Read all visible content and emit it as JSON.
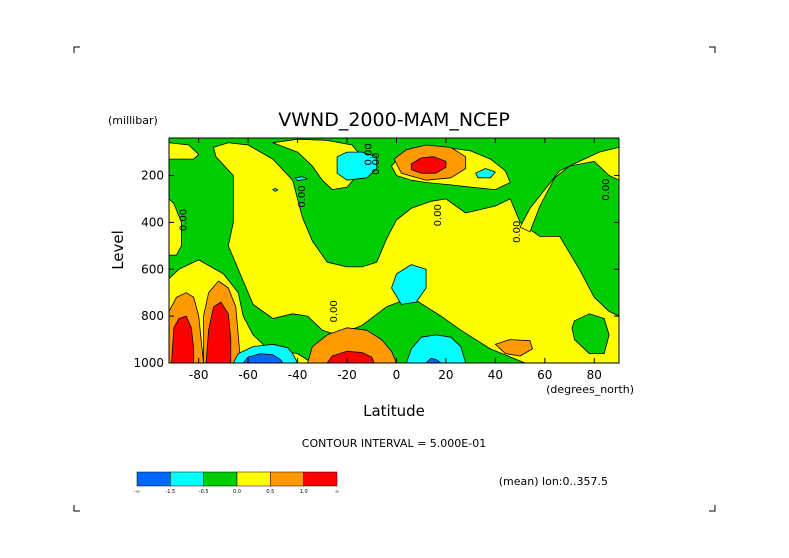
{
  "chart_data": {
    "type": "contour",
    "title": "VWND_2000-MAM_NCEP",
    "xlabel": "Latitude",
    "ylabel": "Level",
    "x_units": "(degrees_north)",
    "y_units": "(millibar)",
    "xlim": [
      -92,
      90
    ],
    "ylim": [
      1000,
      40
    ],
    "y_axis": "inverted pressure",
    "x_ticks": [
      {
        "value": -80,
        "label": "-80"
      },
      {
        "value": -60,
        "label": "-60"
      },
      {
        "value": -40,
        "label": "-40"
      },
      {
        "value": -20,
        "label": "-20"
      },
      {
        "value": 0,
        "label": "0"
      },
      {
        "value": 20,
        "label": "20"
      },
      {
        "value": 40,
        "label": "40"
      },
      {
        "value": 60,
        "label": "60"
      },
      {
        "value": 80,
        "label": "80"
      }
    ],
    "y_ticks": [
      {
        "value": 200,
        "label": "200"
      },
      {
        "value": 400,
        "label": "400"
      },
      {
        "value": 600,
        "label": "600"
      },
      {
        "value": 800,
        "label": "800"
      },
      {
        "value": 1000,
        "label": "1000"
      }
    ],
    "contour_interval_text": "CONTOUR INTERVAL = 5.000E-01",
    "footnote": "(mean) lon:0..357.5",
    "zero_labels": [
      {
        "text": "0.00",
        "lat": -85,
        "p": 390
      },
      {
        "text": "0.00",
        "lat": -37,
        "p": 290
      },
      {
        "text": "0.00",
        "lat": -24,
        "p": 780
      },
      {
        "text": "0.00",
        "lat": -10,
        "p": 110
      },
      {
        "text": "0.00",
        "lat": -7,
        "p": 150
      },
      {
        "text": "0.00",
        "lat": 18,
        "p": 370
      },
      {
        "text": "0.00",
        "lat": 50,
        "p": 440
      },
      {
        "text": "0.00",
        "lat": 86,
        "p": 260
      }
    ],
    "levels": [
      {
        "color": "#0066ff",
        "label": "-∞"
      },
      {
        "color": "#00ffff",
        "label": "-1.5"
      },
      {
        "color": "#00cc00",
        "label": "-0.5"
      },
      {
        "color": "#ffff00",
        "label": "0.0"
      },
      {
        "color": "#ff9900",
        "label": "0.5"
      },
      {
        "color": "#ff0000",
        "label": "1.0"
      }
    ],
    "colorbar_end_label": "∞",
    "background_color": "#00cc00",
    "regions": [
      {
        "color": "#ffff00",
        "poly": [
          [
            -92,
            1000
          ],
          [
            -92,
            640
          ],
          [
            -88,
            600
          ],
          [
            -80,
            560
          ],
          [
            -70,
            620
          ],
          [
            -64,
            700
          ],
          [
            -62,
            800
          ],
          [
            -58,
            880
          ],
          [
            -52,
            940
          ],
          [
            -40,
            960
          ],
          [
            -34,
            1000
          ]
        ]
      },
      {
        "color": "#ffff00",
        "poly": [
          [
            -73,
            120
          ],
          [
            -66,
            200
          ],
          [
            -66,
            400
          ],
          [
            -68,
            500
          ],
          [
            -62,
            650
          ],
          [
            -58,
            750
          ],
          [
            -50,
            810
          ],
          [
            -42,
            790
          ],
          [
            -36,
            800
          ],
          [
            -30,
            860
          ],
          [
            -24,
            880
          ],
          [
            -14,
            840
          ],
          [
            -4,
            760
          ],
          [
            6,
            720
          ],
          [
            18,
            800
          ],
          [
            26,
            860
          ],
          [
            38,
            940
          ],
          [
            52,
            1000
          ],
          [
            90,
            1000
          ],
          [
            90,
            800
          ],
          [
            86,
            780
          ],
          [
            80,
            720
          ],
          [
            74,
            600
          ],
          [
            66,
            460
          ],
          [
            58,
            460
          ],
          [
            54,
            430
          ],
          [
            50,
            400
          ],
          [
            46,
            300
          ],
          [
            40,
            330
          ],
          [
            28,
            360
          ],
          [
            20,
            300
          ],
          [
            14,
            310
          ],
          [
            6,
            340
          ],
          [
            0,
            390
          ],
          [
            -4,
            470
          ],
          [
            -8,
            570
          ],
          [
            -14,
            590
          ],
          [
            -20,
            590
          ],
          [
            -28,
            570
          ],
          [
            -34,
            480
          ],
          [
            -38,
            380
          ],
          [
            -42,
            220
          ],
          [
            -50,
            130
          ],
          [
            -60,
            70
          ],
          [
            -68,
            60
          ],
          [
            -74,
            80
          ]
        ]
      },
      {
        "color": "#ffff00",
        "poly": [
          [
            54,
            440
          ],
          [
            58,
            330
          ],
          [
            64,
            210
          ],
          [
            70,
            160
          ],
          [
            80,
            140
          ],
          [
            86,
            200
          ],
          [
            90,
            220
          ],
          [
            90,
            80
          ],
          [
            82,
            100
          ],
          [
            74,
            140
          ],
          [
            66,
            180
          ],
          [
            60,
            260
          ],
          [
            54,
            340
          ],
          [
            50,
            420
          ]
        ]
      },
      {
        "color": "#ffff00",
        "poly": [
          [
            -50,
            60
          ],
          [
            -40,
            100
          ],
          [
            -34,
            160
          ],
          [
            -30,
            220
          ],
          [
            -26,
            260
          ],
          [
            -20,
            250
          ],
          [
            -16,
            200
          ],
          [
            -14,
            120
          ],
          [
            -18,
            70
          ],
          [
            -28,
            50
          ],
          [
            -40,
            45
          ]
        ]
      },
      {
        "color": "#ffff00",
        "poly": [
          [
            20,
            80
          ],
          [
            30,
            95
          ],
          [
            38,
            130
          ],
          [
            44,
            180
          ],
          [
            46,
            230
          ],
          [
            40,
            260
          ],
          [
            30,
            250
          ],
          [
            22,
            240
          ],
          [
            12,
            230
          ],
          [
            6,
            220
          ],
          [
            0,
            200
          ],
          [
            -2,
            160
          ],
          [
            2,
            110
          ],
          [
            10,
            85
          ]
        ]
      },
      {
        "color": "#00cc00",
        "poly": [
          [
            72,
            820
          ],
          [
            78,
            790
          ],
          [
            84,
            810
          ],
          [
            86,
            880
          ],
          [
            84,
            960
          ],
          [
            78,
            960
          ],
          [
            72,
            900
          ],
          [
            71,
            850
          ]
        ]
      },
      {
        "color": "#ffff00",
        "poly": [
          [
            -92,
            300
          ],
          [
            -90,
            320
          ],
          [
            -87,
            400
          ],
          [
            -87,
            500
          ],
          [
            -89,
            540
          ],
          [
            -92,
            540
          ]
        ]
      },
      {
        "color": "#ffff00",
        "poly": [
          [
            -92,
            60
          ],
          [
            -84,
            70
          ],
          [
            -80,
            110
          ],
          [
            -82,
            130
          ],
          [
            -92,
            130
          ]
        ]
      },
      {
        "color": "#ffff00",
        "poly": [
          [
            -88,
            870
          ],
          [
            -84,
            860
          ],
          [
            -80,
            880
          ],
          [
            -82,
            920
          ],
          [
            -88,
            920
          ]
        ]
      },
      {
        "color": "#ff9900",
        "poly": [
          [
            -36,
            1000
          ],
          [
            -34,
            930
          ],
          [
            -28,
            880
          ],
          [
            -20,
            850
          ],
          [
            -12,
            860
          ],
          [
            -6,
            900
          ],
          [
            -2,
            950
          ],
          [
            0,
            1000
          ]
        ]
      },
      {
        "color": "#ff0000",
        "poly": [
          [
            -28,
            1000
          ],
          [
            -26,
            970
          ],
          [
            -20,
            950
          ],
          [
            -14,
            955
          ],
          [
            -10,
            975
          ],
          [
            -9,
            1000
          ]
        ]
      },
      {
        "color": "#ff9900",
        "poly": [
          [
            -1,
            130
          ],
          [
            4,
            90
          ],
          [
            12,
            70
          ],
          [
            22,
            80
          ],
          [
            28,
            120
          ],
          [
            28,
            170
          ],
          [
            22,
            210
          ],
          [
            12,
            220
          ],
          [
            2,
            190
          ]
        ]
      },
      {
        "color": "#ff0000",
        "poly": [
          [
            6,
            150
          ],
          [
            10,
            125
          ],
          [
            15,
            120
          ],
          [
            20,
            140
          ],
          [
            20,
            165
          ],
          [
            16,
            190
          ],
          [
            10,
            190
          ],
          [
            6,
            175
          ]
        ]
      },
      {
        "color": "#ff9900",
        "poly": [
          [
            -92,
            1000
          ],
          [
            -92,
            780
          ],
          [
            -89,
            720
          ],
          [
            -85,
            700
          ],
          [
            -82,
            720
          ],
          [
            -80,
            800
          ],
          [
            -79,
            900
          ],
          [
            -78,
            1000
          ]
        ]
      },
      {
        "color": "#ff0000",
        "poly": [
          [
            -91,
            1000
          ],
          [
            -90,
            850
          ],
          [
            -88,
            810
          ],
          [
            -85,
            800
          ],
          [
            -83,
            850
          ],
          [
            -82,
            940
          ],
          [
            -82,
            1000
          ]
        ]
      },
      {
        "color": "#ff9900",
        "poly": [
          [
            -78,
            1000
          ],
          [
            -78,
            800
          ],
          [
            -76,
            700
          ],
          [
            -72,
            650
          ],
          [
            -68,
            680
          ],
          [
            -65,
            760
          ],
          [
            -64,
            880
          ],
          [
            -63,
            1000
          ]
        ]
      },
      {
        "color": "#ff0000",
        "poly": [
          [
            -77,
            1000
          ],
          [
            -76,
            860
          ],
          [
            -74,
            760
          ],
          [
            -71,
            740
          ],
          [
            -68,
            790
          ],
          [
            -67,
            900
          ],
          [
            -67,
            1000
          ]
        ]
      },
      {
        "color": "#ff9900",
        "poly": [
          [
            40,
            920
          ],
          [
            46,
            900
          ],
          [
            54,
            905
          ],
          [
            55,
            940
          ],
          [
            50,
            970
          ],
          [
            44,
            960
          ]
        ]
      },
      {
        "color": "#00ffff",
        "poly": [
          [
            -66,
            1000
          ],
          [
            -64,
            960
          ],
          [
            -58,
            930
          ],
          [
            -50,
            920
          ],
          [
            -44,
            935
          ],
          [
            -42,
            960
          ],
          [
            -40,
            1000
          ]
        ]
      },
      {
        "color": "#0066ff",
        "poly": [
          [
            -62,
            1000
          ],
          [
            -60,
            975
          ],
          [
            -55,
            960
          ],
          [
            -50,
            965
          ],
          [
            -47,
            985
          ],
          [
            -46,
            1000
          ]
        ]
      },
      {
        "color": "#00ffff",
        "poly": [
          [
            4,
            1000
          ],
          [
            6,
            940
          ],
          [
            10,
            890
          ],
          [
            16,
            880
          ],
          [
            22,
            890
          ],
          [
            26,
            930
          ],
          [
            28,
            1000
          ]
        ]
      },
      {
        "color": "#0066ff",
        "poly": [
          [
            12,
            1000
          ],
          [
            14,
            980
          ],
          [
            16,
            985
          ],
          [
            18,
            1000
          ]
        ]
      },
      {
        "color": "#00ffff",
        "poly": [
          [
            -24,
            120
          ],
          [
            -20,
            100
          ],
          [
            -14,
            100
          ],
          [
            -8,
            120
          ],
          [
            -8,
            170
          ],
          [
            -12,
            210
          ],
          [
            -20,
            220
          ],
          [
            -24,
            190
          ]
        ]
      },
      {
        "color": "#00ffff",
        "poly": [
          [
            -2,
            680
          ],
          [
            0,
            620
          ],
          [
            6,
            580
          ],
          [
            12,
            600
          ],
          [
            12,
            680
          ],
          [
            8,
            740
          ],
          [
            2,
            750
          ]
        ]
      },
      {
        "color": "#00ffff",
        "poly": [
          [
            32,
            190
          ],
          [
            36,
            170
          ],
          [
            40,
            185
          ],
          [
            38,
            210
          ],
          [
            33,
            210
          ]
        ]
      },
      {
        "color": "#00ffff",
        "poly": [
          [
            -41,
            210
          ],
          [
            -38,
            205
          ],
          [
            -36,
            215
          ],
          [
            -40,
            222
          ]
        ]
      },
      {
        "color": "#00ffff",
        "poly": [
          [
            -50,
            260
          ],
          [
            -49,
            255
          ],
          [
            -48,
            262
          ],
          [
            -49,
            268
          ]
        ]
      }
    ]
  }
}
